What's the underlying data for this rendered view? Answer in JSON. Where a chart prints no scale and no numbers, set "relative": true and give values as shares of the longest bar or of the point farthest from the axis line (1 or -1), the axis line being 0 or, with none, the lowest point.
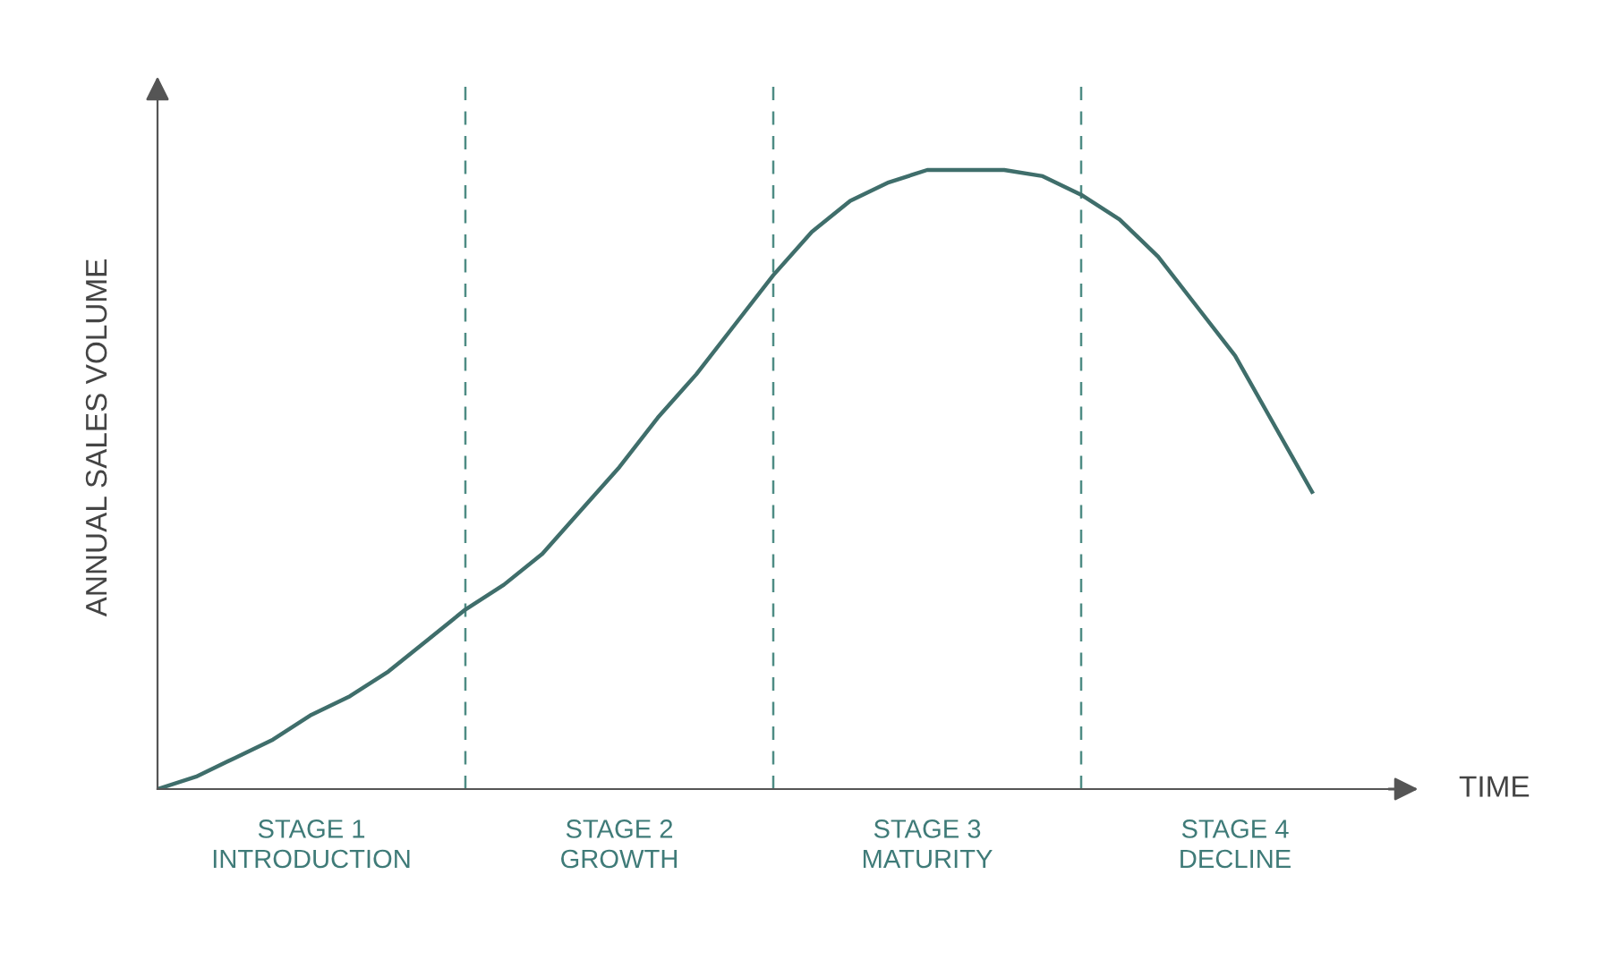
{
  "chart_data": {
    "type": "line",
    "relative": true,
    "ylabel": "ANNUAL SALES VOLUME",
    "xlabel": "TIME",
    "categories": [
      null,
      null,
      null,
      null,
      null,
      null,
      null,
      null,
      null,
      null,
      null,
      null,
      null,
      null,
      null,
      null,
      null,
      null,
      null,
      null,
      null,
      null,
      null,
      null,
      null,
      null,
      null,
      null,
      null,
      null,
      null
    ],
    "series": [
      {
        "color": "#3f6e6b",
        "values": [
          0,
          0.02,
          0.05,
          0.08,
          0.12,
          0.15,
          0.19,
          0.24,
          0.29,
          0.33,
          0.38,
          0.45,
          0.52,
          0.6,
          0.67,
          0.75,
          0.83,
          0.9,
          0.95,
          0.98,
          1.0,
          1.0,
          1.0,
          0.99,
          0.96,
          0.92,
          0.86,
          0.78,
          0.7,
          0.59,
          0.48
        ]
      }
    ],
    "annotations": [
      "STAGE 1\nINTRODUCTION",
      "STAGE 2\nGROWTH",
      "STAGE 3\nMATURITY",
      "STAGE 4\nDECLINE"
    ],
    "grid": "x",
    "legend": false,
    "marker": "none",
    "line_style": "solid"
  }
}
